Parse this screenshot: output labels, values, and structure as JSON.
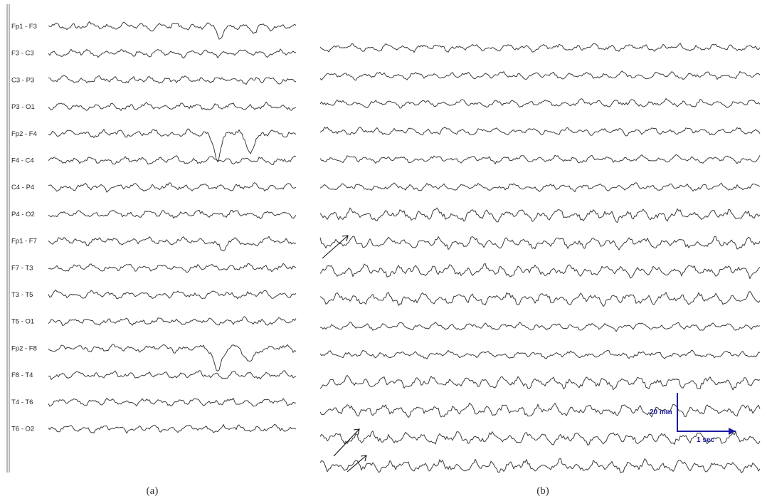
{
  "panels": {
    "a": {
      "caption": "(a)",
      "channels": [
        "Fp1 - F3",
        "F3 - C3",
        "C3 - P3",
        "P3 - O1",
        "Fp2 - F4",
        "F4 - C4",
        "C4 - P4",
        "P4 - O2",
        "Fp1 - F7",
        "F7 - T3",
        "T3 - T5",
        "T5 - O1",
        "Fp2 - F8",
        "F8 - T4",
        "T4 - T6",
        "T6 - O2"
      ]
    },
    "b": {
      "caption": "(b)",
      "trace_count": 16,
      "scale_bar": {
        "vertical_label": "20 mm",
        "horizontal_label": "1 sec"
      },
      "arrows": 3
    }
  },
  "colors": {
    "trace": "#3a3a3a",
    "scale_bar": "#1a1aa0",
    "divider": "#888888"
  }
}
